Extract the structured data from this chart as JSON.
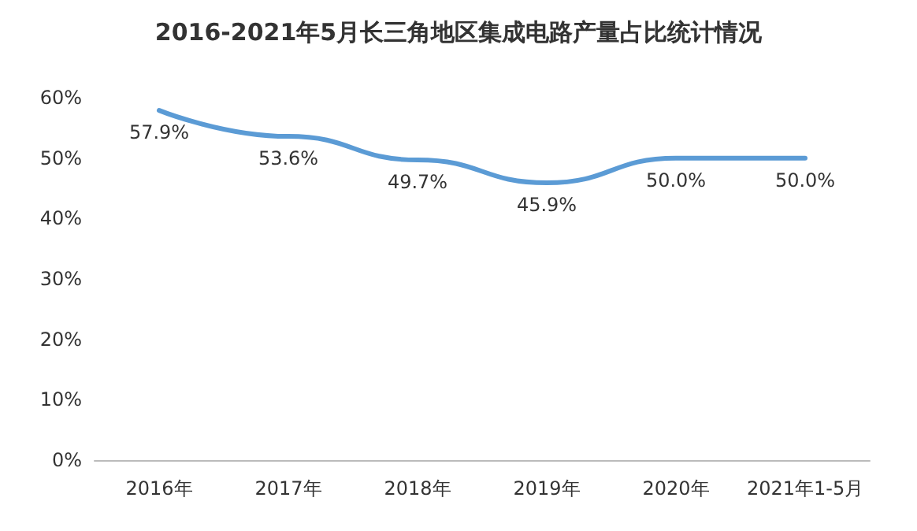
{
  "chart_data": {
    "type": "line",
    "title": "2016-2021年5月长三角地区集成电路产量占比统计情况",
    "categories": [
      "2016年",
      "2017年",
      "2018年",
      "2019年",
      "2020年",
      "2021年1-5月"
    ],
    "series": [
      {
        "color": "#5b9bd5",
        "values": [
          57.9,
          53.6,
          49.7,
          45.9,
          50.0,
          50.0
        ],
        "value_labels": [
          "57.9%",
          "53.6%",
          "49.7%",
          "45.9%",
          "50.0%",
          "50.0%"
        ]
      }
    ],
    "ylim": [
      0,
      60
    ],
    "yticks": [
      {
        "value": 0,
        "label": "0%"
      },
      {
        "value": 10,
        "label": "10%"
      },
      {
        "value": 20,
        "label": "20%"
      },
      {
        "value": 30,
        "label": "30%"
      },
      {
        "value": 40,
        "label": "40%"
      },
      {
        "value": 50,
        "label": "50%"
      },
      {
        "value": 60,
        "label": "60%"
      }
    ],
    "grid": false,
    "marker": "none",
    "line_style": "solid"
  }
}
